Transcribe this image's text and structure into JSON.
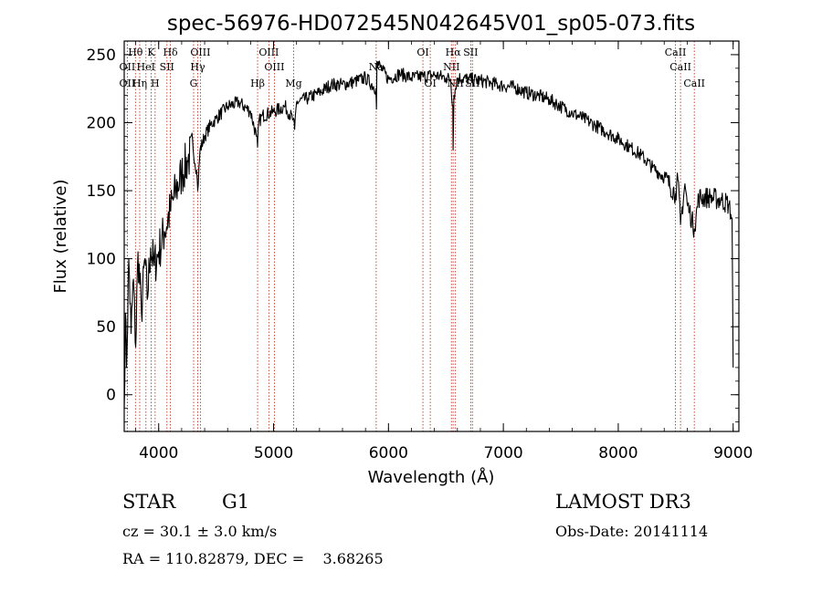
{
  "chart_data": {
    "type": "line",
    "title": "spec-56976-HD072545N042645V01_sp05-073.fits",
    "xlabel": "Wavelength (Å)",
    "ylabel": "Flux (relative)",
    "xlim": [
      3700,
      9050
    ],
    "ylim": [
      -27,
      260
    ],
    "x_ticks": [
      4000,
      5000,
      6000,
      7000,
      8000,
      9000
    ],
    "y_ticks": [
      0,
      50,
      100,
      150,
      200,
      250
    ],
    "grid": false,
    "legend": "none",
    "spectrum": {
      "x": [
        3700,
        3710,
        3720,
        3740,
        3760,
        3780,
        3800,
        3820,
        3850,
        3880,
        3900,
        3930,
        3960,
        4000,
        4050,
        4100,
        4150,
        4200,
        4250,
        4300,
        4330,
        4340,
        4360,
        4400,
        4450,
        4500,
        4600,
        4700,
        4800,
        4850,
        4861,
        4870,
        4900,
        5000,
        5100,
        5170,
        5183,
        5200,
        5300,
        5400,
        5500,
        5600,
        5700,
        5800,
        5890,
        5896,
        5900,
        5950,
        6000,
        6100,
        6200,
        6300,
        6400,
        6500,
        6540,
        6560,
        6563,
        6570,
        6600,
        6700,
        6800,
        6900,
        7000,
        7100,
        7200,
        7300,
        7400,
        7500,
        7600,
        7700,
        7800,
        7900,
        8000,
        8100,
        8200,
        8300,
        8400,
        8498,
        8520,
        8542,
        8580,
        8600,
        8620,
        8662,
        8700,
        8800,
        8900,
        8960,
        8990,
        9000
      ],
      "y": [
        -10,
        60,
        20,
        100,
        45,
        85,
        35,
        105,
        60,
        100,
        70,
        108,
        95,
        105,
        120,
        135,
        150,
        162,
        172,
        180,
        165,
        150,
        180,
        190,
        198,
        203,
        212,
        215,
        208,
        190,
        182,
        200,
        205,
        208,
        212,
        202,
        195,
        215,
        218,
        222,
        228,
        228,
        230,
        233,
        225,
        210,
        245,
        238,
        232,
        236,
        233,
        234,
        235,
        233,
        232,
        212,
        180,
        220,
        233,
        232,
        231,
        229,
        227,
        226,
        222,
        220,
        217,
        212,
        207,
        203,
        198,
        193,
        188,
        182,
        176,
        167,
        160,
        148,
        158,
        125,
        155,
        140,
        135,
        122,
        145,
        145,
        143,
        140,
        130,
        20
      ]
    },
    "lines": [
      {
        "label": "Hθ",
        "x": 3798
      },
      {
        "label": "K",
        "x": 3934
      },
      {
        "label": "Hδ",
        "x": 4102
      },
      {
        "label": "OII",
        "x": 3727
      },
      {
        "label": "HeI",
        "x": 3889
      },
      {
        "label": "SII",
        "x": 4072
      },
      {
        "label": "OIII",
        "x": 4363
      },
      {
        "label": "Hγ",
        "x": 4340
      },
      {
        "label": "OII",
        "x": 3727
      },
      {
        "label": "Hη",
        "x": 3835
      },
      {
        "label": "H",
        "x": 3969
      },
      {
        "label": "G",
        "x": 4304
      },
      {
        "label": "OIII",
        "x": 4959
      },
      {
        "label": "OIII",
        "x": 5007
      },
      {
        "label": "Hβ",
        "x": 4861
      },
      {
        "label": "Mg",
        "x": 5175
      },
      {
        "label": "Na",
        "x": 5893
      },
      {
        "label": "OI",
        "x": 6300
      },
      {
        "label": "OI",
        "x": 6364
      },
      {
        "label": "Hα",
        "x": 6563
      },
      {
        "label": "NII",
        "x": 6548
      },
      {
        "label": "NII",
        "x": 6583
      },
      {
        "label": "SII",
        "x": 6716
      },
      {
        "label": "SII",
        "x": 6731
      },
      {
        "label": "CaII",
        "x": 8498
      },
      {
        "label": "CaII",
        "x": 8542
      },
      {
        "label": "CaII",
        "x": 8662
      }
    ]
  },
  "info": {
    "class": "STAR",
    "subclass": "G1",
    "survey": "LAMOST DR3",
    "cz": "cz = 30.1 ± 3.0 km/s",
    "obs_date": "Obs-Date: 20141114",
    "coords": "RA = 110.82879, DEC =    3.68265"
  }
}
